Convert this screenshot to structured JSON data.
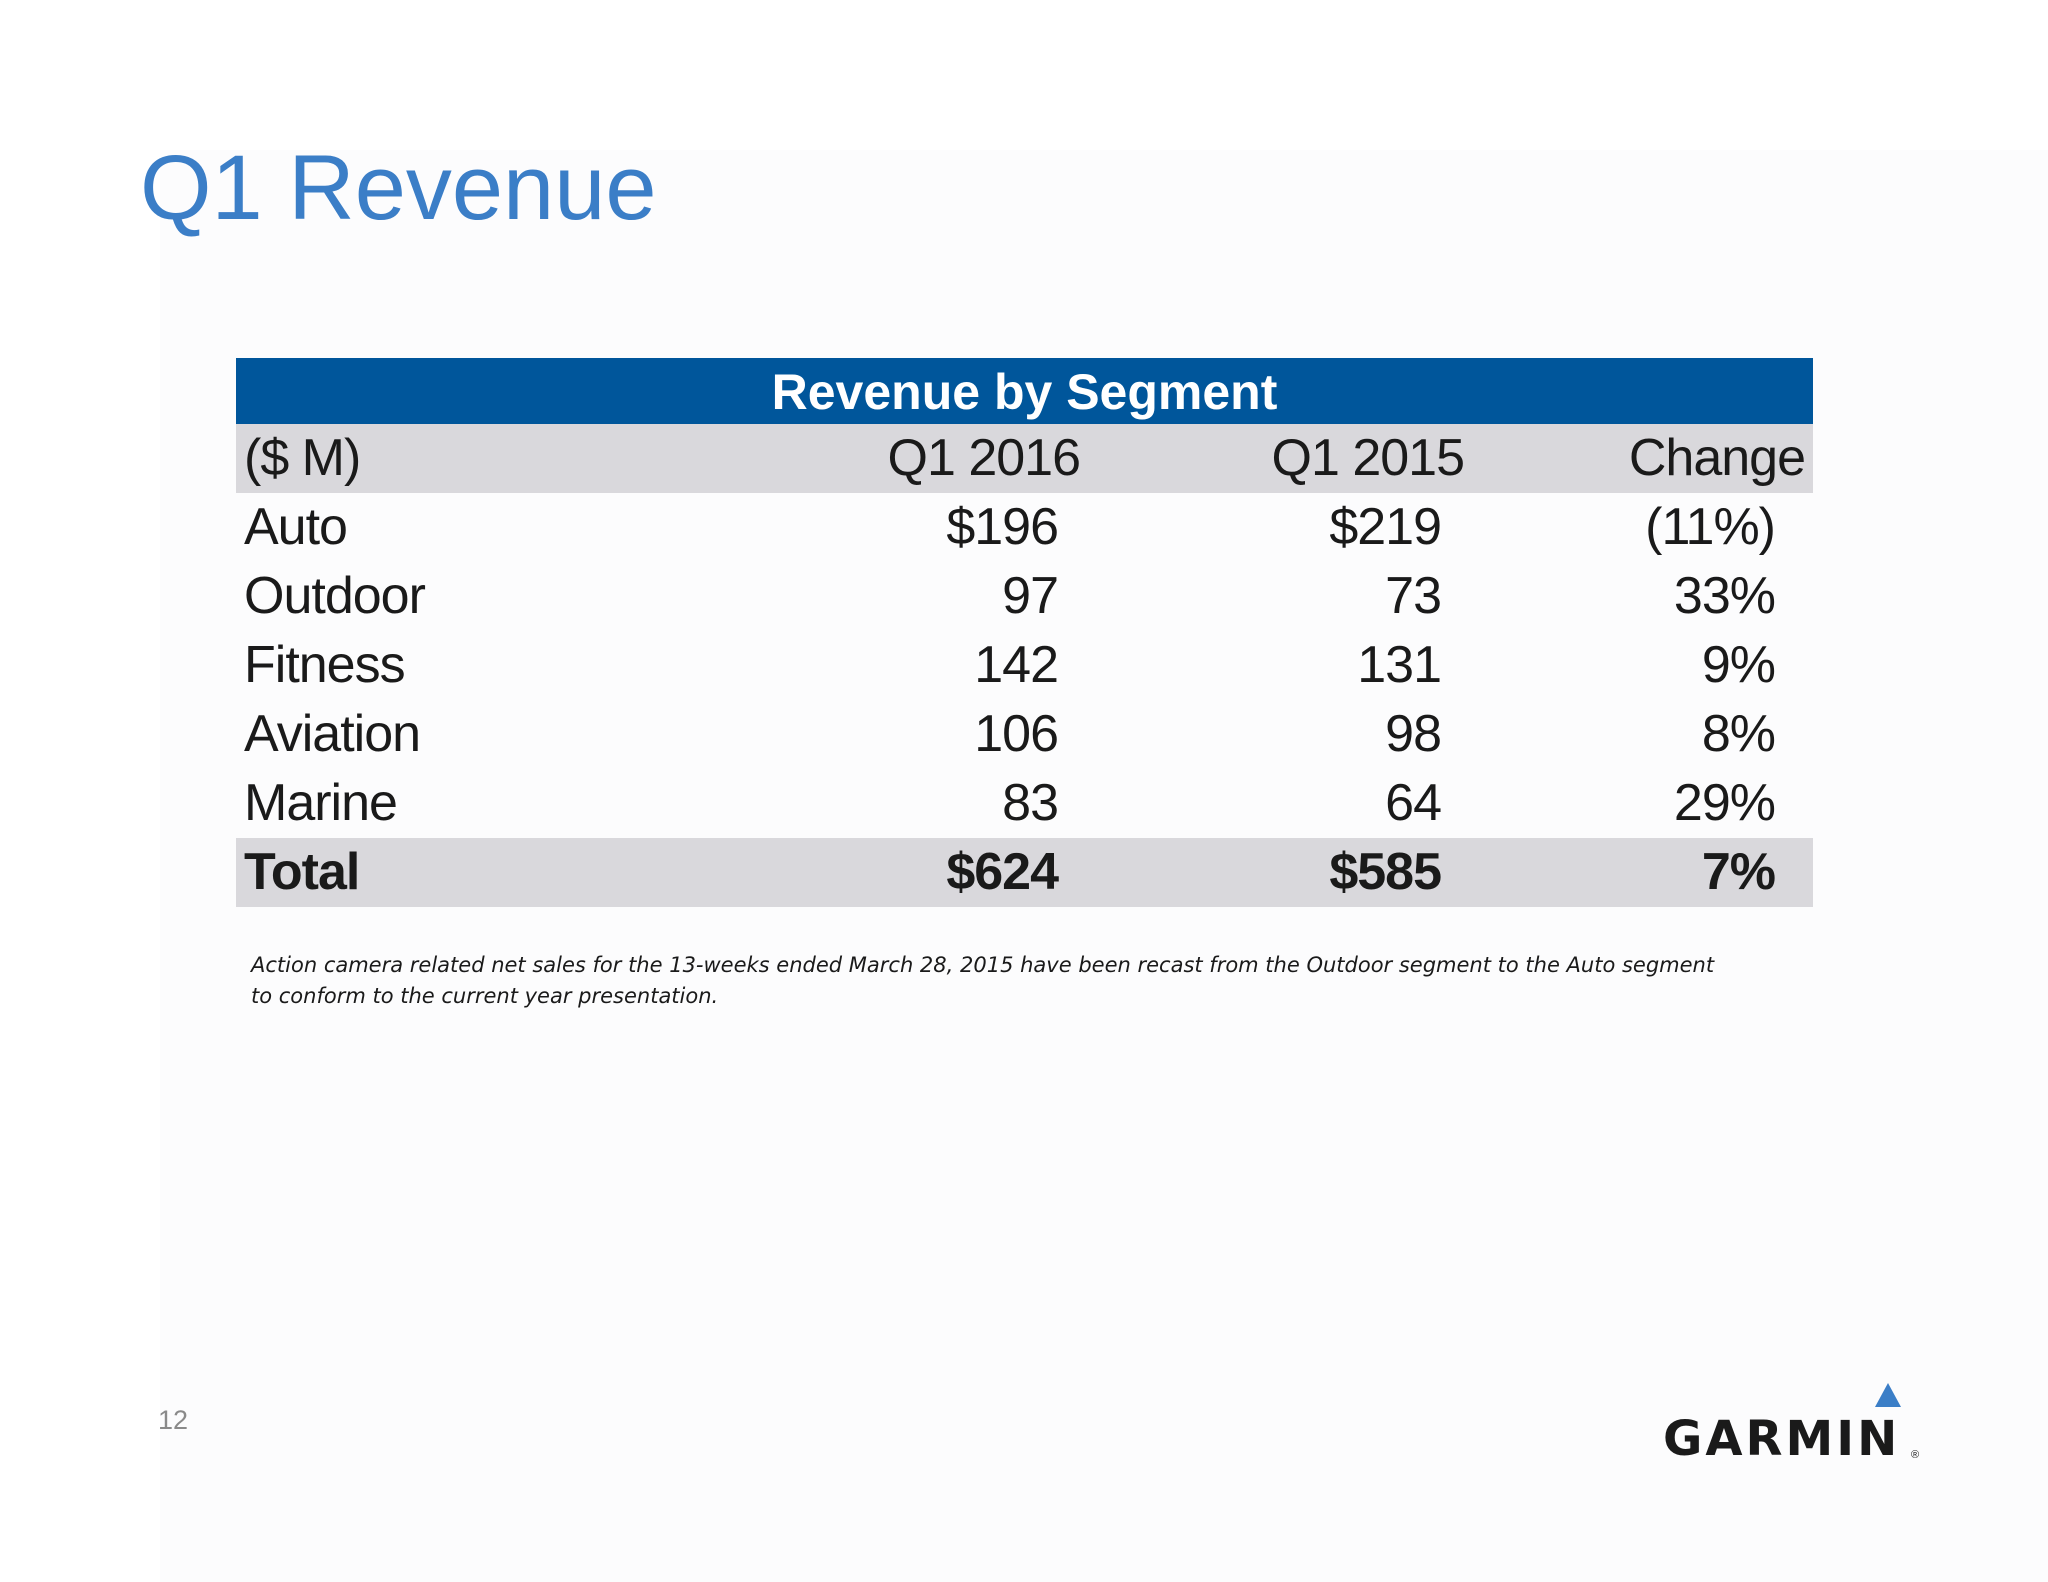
{
  "slide": {
    "title": "Q1 Revenue",
    "page_number": "12"
  },
  "table": {
    "title": "Revenue by Segment",
    "columns": [
      "($ M)",
      "Q1 2016",
      "Q1 2015",
      "Change"
    ],
    "rows": [
      [
        "Auto",
        "$196",
        "$219",
        "(11%)"
      ],
      [
        "Outdoor",
        "97",
        "73",
        "33%"
      ],
      [
        "Fitness",
        "142",
        "131",
        "9%"
      ],
      [
        "Aviation",
        "106",
        "98",
        "8%"
      ],
      [
        "Marine",
        "83",
        "64",
        "29%"
      ]
    ],
    "total": [
      "Total",
      "$624",
      "$585",
      "7%"
    ]
  },
  "footnote": {
    "line1": "Action camera related net sales for the 13-weeks ended March 28, 2015 have been recast from the Outdoor segment to the Auto segment",
    "line2": "to conform to the current year presentation."
  },
  "logo": {
    "wordmark": "GARMIN",
    "registered": "®",
    "icon": "garmin-triangle-icon"
  },
  "colors": {
    "title": "#3b7ec7",
    "table_header_band": "#00569b",
    "row_shade": "#d9d8dc",
    "logo_triangle": "#3b7ec7"
  }
}
